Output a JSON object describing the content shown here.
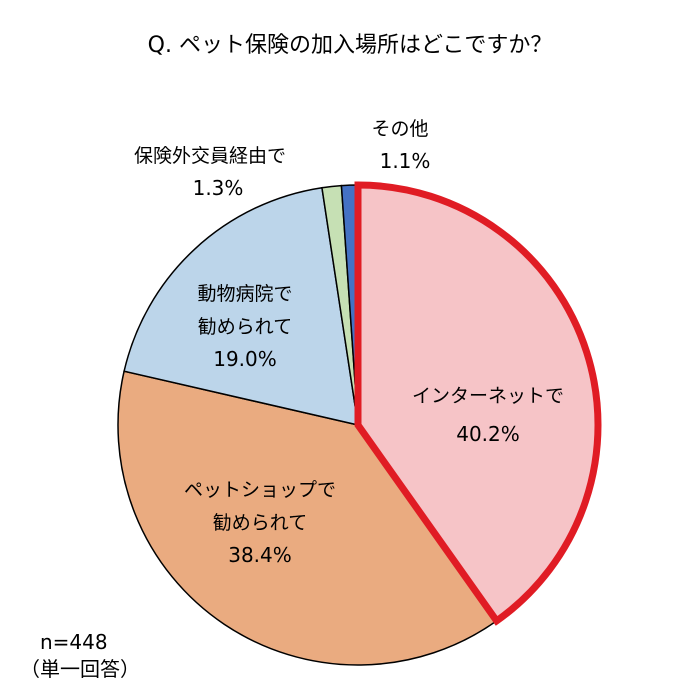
{
  "chart_data": {
    "type": "pie",
    "title": "Q. ペット保険の加入場所はどこですか？",
    "sample_size": "n=448",
    "answer_type": "（単一回答）",
    "slices": [
      {
        "label_lines": [
          "インターネットで"
        ],
        "value": 40.2,
        "value_label": "40.2%",
        "color": "#f6c4c7",
        "highlight": true,
        "highlight_color": "#e01c24"
      },
      {
        "label_lines": [
          "ペットショップで",
          "勧められて"
        ],
        "value": 38.4,
        "value_label": "38.4%",
        "color": "#eaab80"
      },
      {
        "label_lines": [
          "動物病院で",
          "勧められて"
        ],
        "value": 19.0,
        "value_label": "19.0%",
        "color": "#bcd5ea"
      },
      {
        "label_lines": [
          "保険外交員経由で"
        ],
        "value": 1.3,
        "value_label": "1.3%",
        "color": "#c6e0b4"
      },
      {
        "label_lines": [
          "その他"
        ],
        "value": 1.1,
        "value_label": "1.1%",
        "color": "#4472c4"
      }
    ]
  }
}
